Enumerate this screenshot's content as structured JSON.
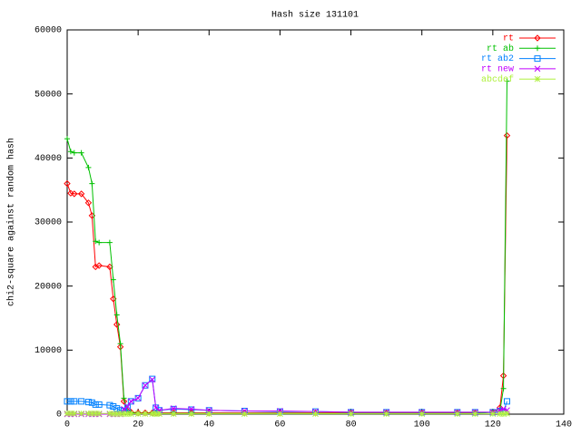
{
  "chart_data": {
    "type": "line",
    "title": "Hash size 131101",
    "y_label": "chi2-square against random hash",
    "x": [
      0,
      1,
      2,
      4,
      6,
      7,
      8,
      9,
      12,
      13,
      14,
      15,
      16,
      17,
      18,
      20,
      22,
      24,
      25,
      26,
      30,
      35,
      40,
      50,
      60,
      70,
      80,
      90,
      100,
      110,
      115,
      120,
      122,
      123,
      124
    ],
    "xlim": [
      0,
      140
    ],
    "xticks": [
      0,
      20,
      40,
      60,
      80,
      100,
      120,
      140
    ],
    "ylim": [
      0,
      60000
    ],
    "yticks": [
      0,
      10000,
      20000,
      30000,
      40000,
      50000,
      60000
    ],
    "legend": "top-right",
    "series": [
      {
        "name": "rt",
        "color": "#ff0000",
        "marker": "diamond",
        "values": [
          36000,
          34500,
          34400,
          34400,
          33000,
          31000,
          23000,
          23200,
          23000,
          18000,
          14000,
          10500,
          2000,
          500,
          300,
          200,
          200,
          200,
          200,
          200,
          200,
          200,
          200,
          200,
          200,
          200,
          200,
          200,
          200,
          200,
          200,
          300,
          1000,
          6000,
          43500
        ]
      },
      {
        "name": "rt ab",
        "color": "#00c000",
        "marker": "plus",
        "values": [
          43000,
          41000,
          40800,
          40800,
          38500,
          36000,
          27000,
          26800,
          26800,
          21000,
          15500,
          11000,
          2500,
          300,
          200,
          100,
          100,
          100,
          100,
          100,
          100,
          100,
          100,
          100,
          100,
          100,
          100,
          100,
          100,
          100,
          100,
          300,
          500,
          4000,
          52000
        ]
      },
      {
        "name": "rt ab2",
        "color": "#0080ff",
        "marker": "square",
        "values": [
          2000,
          2000,
          2000,
          2000,
          1900,
          1800,
          1500,
          1500,
          1400,
          1200,
          900,
          600,
          500,
          1000,
          2000,
          2500,
          4500,
          5500,
          1000,
          600,
          800,
          700,
          600,
          500,
          400,
          400,
          300,
          300,
          300,
          300,
          300,
          300,
          500,
          400,
          2000
        ]
      },
      {
        "name": "rt new",
        "color": "#c000ff",
        "marker": "cross",
        "values": [
          0,
          0,
          0,
          0,
          0,
          0,
          0,
          0,
          0,
          0,
          0,
          0,
          800,
          1200,
          2000,
          2500,
          4500,
          5400,
          1000,
          600,
          900,
          800,
          600,
          500,
          500,
          400,
          300,
          300,
          300,
          300,
          300,
          300,
          600,
          800,
          600
        ]
      },
      {
        "name": "abcdef",
        "color": "#b0f040",
        "marker": "star",
        "values": [
          100,
          100,
          100,
          100,
          100,
          100,
          100,
          100,
          100,
          50,
          50,
          50,
          50,
          50,
          50,
          50,
          50,
          50,
          50,
          50,
          50,
          50,
          50,
          50,
          50,
          50,
          50,
          50,
          50,
          50,
          50,
          50,
          50,
          50,
          100
        ]
      }
    ]
  }
}
